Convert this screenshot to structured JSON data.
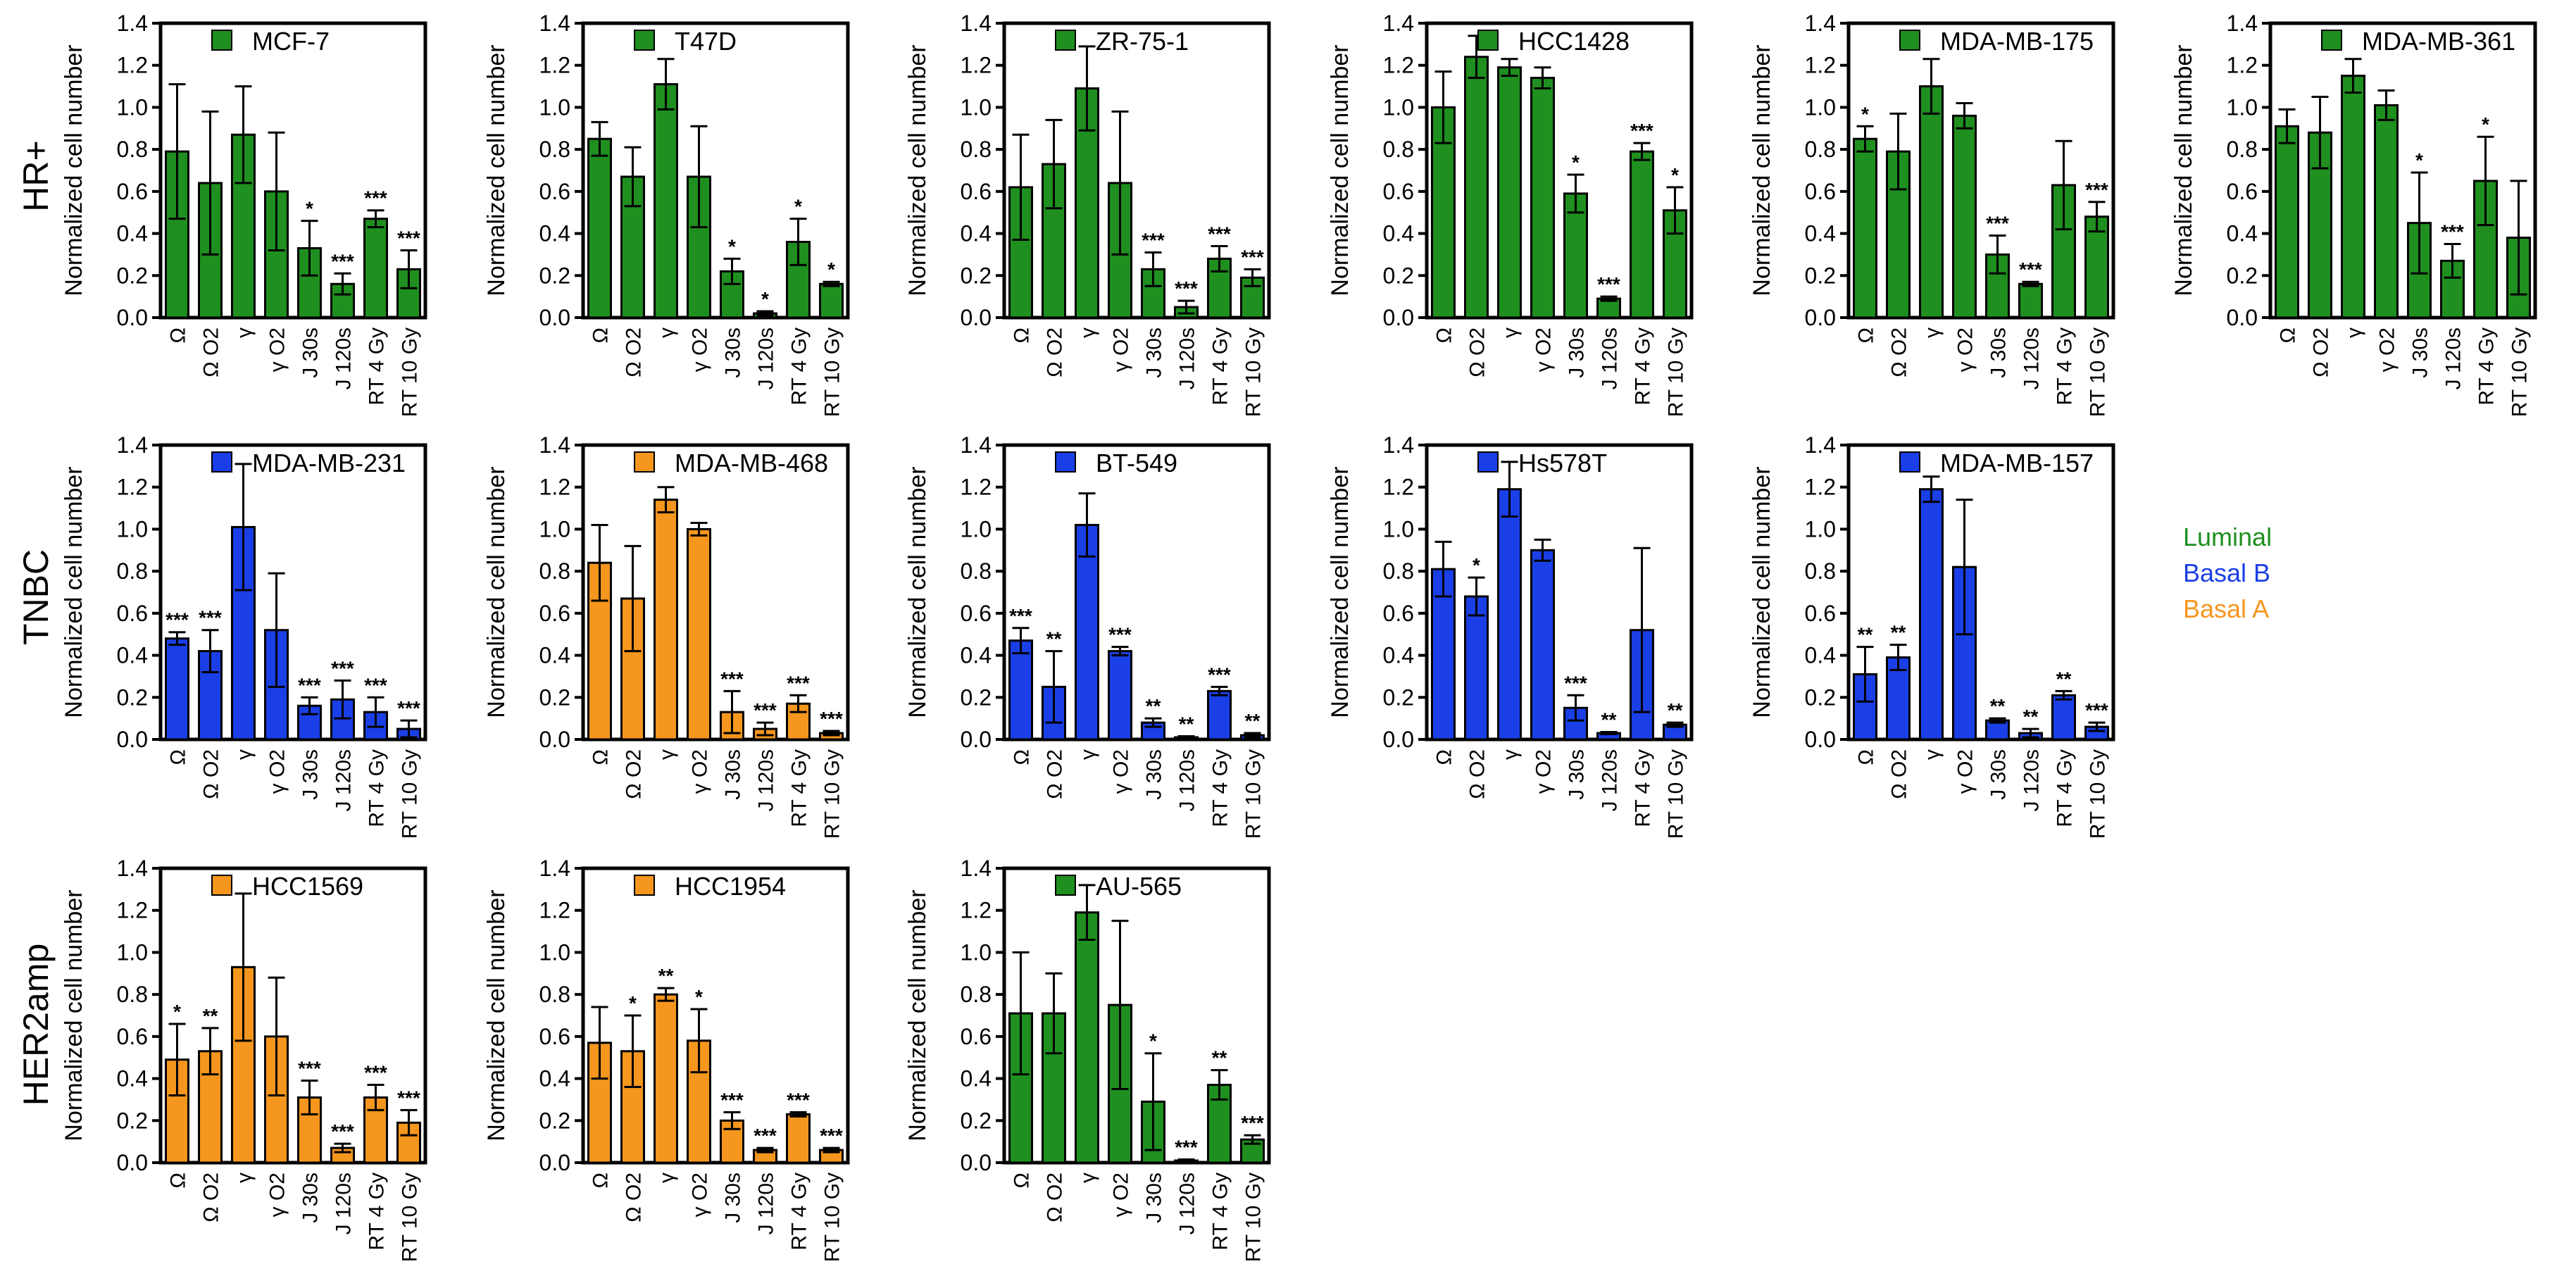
{
  "figure": {
    "y_axis_label": "Normalized cell number",
    "row_labels": [
      "HR+",
      "TNBC",
      "HER2amp"
    ],
    "subtype_key": [
      {
        "label": "Luminal",
        "color": "#1f8f1f"
      },
      {
        "label": "Basal B",
        "color": "#1a3fe6"
      },
      {
        "label": "Basal A",
        "color": "#f5961e"
      }
    ]
  },
  "chart_data": [
    {
      "type": "bar",
      "title": "MCF-7",
      "row": "HR+",
      "color_key": "Luminal",
      "ylabel": "Normalized cell number",
      "ylim": [
        0,
        1.4
      ],
      "yticks": [
        "0.0",
        "0.2",
        "0.4",
        "0.6",
        "0.8",
        "1.0",
        "1.2",
        "1.4"
      ],
      "categories": [
        "Ω",
        "Ω O2",
        "γ",
        "γ O2",
        "J 30s",
        "J 120s",
        "RT 4 Gy",
        "RT 10 Gy"
      ],
      "values": [
        0.79,
        0.64,
        0.87,
        0.6,
        0.33,
        0.16,
        0.47,
        0.23
      ],
      "errors": [
        0.32,
        0.34,
        0.23,
        0.28,
        0.13,
        0.05,
        0.04,
        0.09
      ],
      "significance": [
        "",
        "",
        "",
        "",
        "*",
        "***",
        "***",
        "***"
      ]
    },
    {
      "type": "bar",
      "title": "T47D",
      "row": "HR+",
      "color_key": "Luminal",
      "ylabel": "Normalized cell number",
      "ylim": [
        0,
        1.4
      ],
      "yticks": [
        "0.0",
        "0.2",
        "0.4",
        "0.6",
        "0.8",
        "1.0",
        "1.2",
        "1.4"
      ],
      "categories": [
        "Ω",
        "Ω O2",
        "γ",
        "γ O2",
        "J 30s",
        "J 120s",
        "RT 4 Gy",
        "RT 10 Gy"
      ],
      "values": [
        0.85,
        0.67,
        1.11,
        0.67,
        0.22,
        0.02,
        0.36,
        0.16
      ],
      "errors": [
        0.08,
        0.14,
        0.12,
        0.24,
        0.06,
        0.01,
        0.11,
        0.01
      ],
      "significance": [
        "",
        "",
        "",
        "",
        "*",
        "*",
        "*",
        "*"
      ]
    },
    {
      "type": "bar",
      "title": "ZR-75-1",
      "row": "HR+",
      "color_key": "Luminal",
      "ylabel": "Normalized cell number",
      "ylim": [
        0,
        1.4
      ],
      "yticks": [
        "0.0",
        "0.2",
        "0.4",
        "0.6",
        "0.8",
        "1.0",
        "1.2",
        "1.4"
      ],
      "categories": [
        "Ω",
        "Ω O2",
        "γ",
        "γ O2",
        "J 30s",
        "J 120s",
        "RT 4 Gy",
        "RT 10 Gy"
      ],
      "values": [
        0.62,
        0.73,
        1.09,
        0.64,
        0.23,
        0.05,
        0.28,
        0.19
      ],
      "errors": [
        0.25,
        0.21,
        0.2,
        0.34,
        0.08,
        0.03,
        0.06,
        0.04
      ],
      "significance": [
        "",
        "",
        "",
        "",
        "***",
        "***",
        "***",
        "***"
      ]
    },
    {
      "type": "bar",
      "title": "HCC1428",
      "row": "HR+",
      "color_key": "Luminal",
      "ylabel": "Normalized cell number",
      "ylim": [
        0,
        1.4
      ],
      "yticks": [
        "0.0",
        "0.2",
        "0.4",
        "0.6",
        "0.8",
        "1.0",
        "1.2",
        "1.4"
      ],
      "categories": [
        "Ω",
        "Ω O2",
        "γ",
        "γ O2",
        "J 30s",
        "J 120s",
        "RT 4 Gy",
        "RT 10 Gy"
      ],
      "values": [
        1.0,
        1.24,
        1.19,
        1.14,
        0.59,
        0.09,
        0.79,
        0.51
      ],
      "errors": [
        0.17,
        0.1,
        0.04,
        0.05,
        0.09,
        0.01,
        0.04,
        0.11
      ],
      "significance": [
        "",
        "",
        "",
        "",
        "*",
        "***",
        "***",
        "*"
      ]
    },
    {
      "type": "bar",
      "title": "MDA-MB-175",
      "row": "HR+",
      "color_key": "Luminal",
      "ylabel": "Normalized cell number",
      "ylim": [
        0,
        1.4
      ],
      "yticks": [
        "0.0",
        "0.2",
        "0.4",
        "0.6",
        "0.8",
        "1.0",
        "1.2",
        "1.4"
      ],
      "categories": [
        "Ω",
        "Ω O2",
        "γ",
        "γ O2",
        "J 30s",
        "J 120s",
        "RT 4 Gy",
        "RT 10 Gy"
      ],
      "values": [
        0.85,
        0.79,
        1.1,
        0.96,
        0.3,
        0.16,
        0.63,
        0.48
      ],
      "errors": [
        0.06,
        0.18,
        0.13,
        0.06,
        0.09,
        0.01,
        0.21,
        0.07
      ],
      "significance": [
        "*",
        "",
        "",
        "",
        "***",
        "***",
        "",
        "***"
      ]
    },
    {
      "type": "bar",
      "title": "MDA-MB-361",
      "row": "HR+",
      "color_key": "Luminal",
      "ylabel": "Normalized cell number",
      "ylim": [
        0,
        1.4
      ],
      "yticks": [
        "0.0",
        "0.2",
        "0.4",
        "0.6",
        "0.8",
        "1.0",
        "1.2",
        "1.4"
      ],
      "categories": [
        "Ω",
        "Ω O2",
        "γ",
        "γ O2",
        "J 30s",
        "J 120s",
        "RT 4 Gy",
        "RT 10 Gy"
      ],
      "values": [
        0.91,
        0.88,
        1.15,
        1.01,
        0.45,
        0.27,
        0.65,
        0.38
      ],
      "errors": [
        0.08,
        0.17,
        0.08,
        0.07,
        0.24,
        0.08,
        0.21,
        0.27
      ],
      "significance": [
        "",
        "",
        "",
        "",
        "*",
        "***",
        "*",
        ""
      ]
    },
    {
      "type": "bar",
      "title": "MDA-MB-231",
      "row": "TNBC",
      "color_key": "Basal B",
      "ylabel": "Normalized cell number",
      "ylim": [
        0,
        1.4
      ],
      "yticks": [
        "0.0",
        "0.2",
        "0.4",
        "0.6",
        "0.8",
        "1.0",
        "1.2",
        "1.4"
      ],
      "categories": [
        "Ω",
        "Ω O2",
        "γ",
        "γ O2",
        "J 30s",
        "J 120s",
        "RT 4 Gy",
        "RT 10 Gy"
      ],
      "values": [
        0.48,
        0.42,
        1.01,
        0.52,
        0.16,
        0.19,
        0.13,
        0.05
      ],
      "errors": [
        0.03,
        0.1,
        0.3,
        0.27,
        0.04,
        0.09,
        0.07,
        0.04
      ],
      "significance": [
        "***",
        "***",
        "",
        "",
        "***",
        "***",
        "***",
        "***"
      ]
    },
    {
      "type": "bar",
      "title": "MDA-MB-468",
      "row": "TNBC",
      "color_key": "Basal A",
      "ylabel": "Normalized cell number",
      "ylim": [
        0,
        1.4
      ],
      "yticks": [
        "0.0",
        "0.2",
        "0.4",
        "0.6",
        "0.8",
        "1.0",
        "1.2",
        "1.4"
      ],
      "categories": [
        "Ω",
        "Ω O2",
        "γ",
        "γ O2",
        "J 30s",
        "J 120s",
        "RT 4 Gy",
        "RT 10 Gy"
      ],
      "values": [
        0.84,
        0.67,
        1.14,
        1.0,
        0.13,
        0.05,
        0.17,
        0.03
      ],
      "errors": [
        0.18,
        0.25,
        0.06,
        0.03,
        0.1,
        0.03,
        0.04,
        0.01
      ],
      "significance": [
        "",
        "",
        "",
        "",
        "***",
        "***",
        "***",
        "***"
      ]
    },
    {
      "type": "bar",
      "title": "BT-549",
      "row": "TNBC",
      "color_key": "Basal B",
      "ylabel": "Normalized cell number",
      "ylim": [
        0,
        1.4
      ],
      "yticks": [
        "0.0",
        "0.2",
        "0.4",
        "0.6",
        "0.8",
        "1.0",
        "1.2",
        "1.4"
      ],
      "categories": [
        "Ω",
        "Ω O2",
        "γ",
        "γ O2",
        "J 30s",
        "J 120s",
        "RT 4 Gy",
        "RT 10 Gy"
      ],
      "values": [
        0.47,
        0.25,
        1.02,
        0.42,
        0.08,
        0.01,
        0.23,
        0.02
      ],
      "errors": [
        0.06,
        0.17,
        0.15,
        0.02,
        0.02,
        0.005,
        0.02,
        0.01
      ],
      "significance": [
        "***",
        "**",
        "",
        "***",
        "**",
        "**",
        "***",
        "**"
      ]
    },
    {
      "type": "bar",
      "title": "Hs578T",
      "row": "TNBC",
      "color_key": "Basal B",
      "ylabel": "Normalized cell number",
      "ylim": [
        0,
        1.4
      ],
      "yticks": [
        "0.0",
        "0.2",
        "0.4",
        "0.6",
        "0.8",
        "1.0",
        "1.2",
        "1.4"
      ],
      "categories": [
        "Ω",
        "Ω O2",
        "γ",
        "γ O2",
        "J 30s",
        "J 120s",
        "RT 4 Gy",
        "RT 10 Gy"
      ],
      "values": [
        0.81,
        0.68,
        1.19,
        0.9,
        0.15,
        0.03,
        0.52,
        0.07
      ],
      "errors": [
        0.13,
        0.09,
        0.13,
        0.05,
        0.06,
        0.005,
        0.39,
        0.01
      ],
      "significance": [
        "",
        "*",
        "",
        "",
        "***",
        "**",
        "",
        "**"
      ]
    },
    {
      "type": "bar",
      "title": "MDA-MB-157",
      "row": "TNBC",
      "color_key": "Basal B",
      "ylabel": "Normalized cell number",
      "ylim": [
        0,
        1.4
      ],
      "yticks": [
        "0.0",
        "0.2",
        "0.4",
        "0.6",
        "0.8",
        "1.0",
        "1.2",
        "1.4"
      ],
      "categories": [
        "Ω",
        "Ω O2",
        "γ",
        "γ O2",
        "J 30s",
        "J 120s",
        "RT 4 Gy",
        "RT 10 Gy"
      ],
      "values": [
        0.31,
        0.39,
        1.19,
        0.82,
        0.09,
        0.03,
        0.21,
        0.06
      ],
      "errors": [
        0.13,
        0.06,
        0.06,
        0.32,
        0.01,
        0.02,
        0.02,
        0.02
      ],
      "significance": [
        "**",
        "**",
        "",
        "",
        "**",
        "**",
        "**",
        "***"
      ]
    },
    {
      "type": "bar",
      "title": "HCC1569",
      "row": "HER2amp",
      "color_key": "Basal A",
      "ylabel": "Normalized cell number",
      "ylim": [
        0,
        1.4
      ],
      "yticks": [
        "0.0",
        "0.2",
        "0.4",
        "0.6",
        "0.8",
        "1.0",
        "1.2",
        "1.4"
      ],
      "categories": [
        "Ω",
        "Ω O2",
        "γ",
        "γ O2",
        "J 30s",
        "J 120s",
        "RT 4 Gy",
        "RT 10 Gy"
      ],
      "values": [
        0.49,
        0.53,
        0.93,
        0.6,
        0.31,
        0.07,
        0.31,
        0.19
      ],
      "errors": [
        0.17,
        0.11,
        0.35,
        0.28,
        0.08,
        0.02,
        0.06,
        0.06
      ],
      "significance": [
        "*",
        "**",
        "",
        "",
        "***",
        "***",
        "***",
        "***"
      ]
    },
    {
      "type": "bar",
      "title": "HCC1954",
      "row": "HER2amp",
      "color_key": "Basal A",
      "ylabel": "Normalized cell number",
      "ylim": [
        0,
        1.4
      ],
      "yticks": [
        "0.0",
        "0.2",
        "0.4",
        "0.6",
        "0.8",
        "1.0",
        "1.2",
        "1.4"
      ],
      "categories": [
        "Ω",
        "Ω O2",
        "γ",
        "γ O2",
        "J 30s",
        "J 120s",
        "RT 4 Gy",
        "RT 10 Gy"
      ],
      "values": [
        0.57,
        0.53,
        0.8,
        0.58,
        0.2,
        0.06,
        0.23,
        0.06
      ],
      "errors": [
        0.17,
        0.17,
        0.03,
        0.15,
        0.04,
        0.01,
        0.01,
        0.01
      ],
      "significance": [
        "",
        "*",
        "**",
        "*",
        "***",
        "***",
        "***",
        "***"
      ]
    },
    {
      "type": "bar",
      "title": "AU-565",
      "row": "HER2amp",
      "color_key": "Luminal",
      "ylabel": "Normalized cell number",
      "ylim": [
        0,
        1.4
      ],
      "yticks": [
        "0.0",
        "0.2",
        "0.4",
        "0.6",
        "0.8",
        "1.0",
        "1.2",
        "1.4"
      ],
      "categories": [
        "Ω",
        "Ω O2",
        "γ",
        "γ O2",
        "J 30s",
        "J 120s",
        "RT 4 Gy",
        "RT 10 Gy"
      ],
      "values": [
        0.71,
        0.71,
        1.19,
        0.75,
        0.29,
        0.01,
        0.37,
        0.11
      ],
      "errors": [
        0.29,
        0.19,
        0.13,
        0.4,
        0.23,
        0.005,
        0.07,
        0.02
      ],
      "significance": [
        "",
        "",
        "",
        "",
        "*",
        "***",
        "**",
        "***"
      ]
    }
  ]
}
